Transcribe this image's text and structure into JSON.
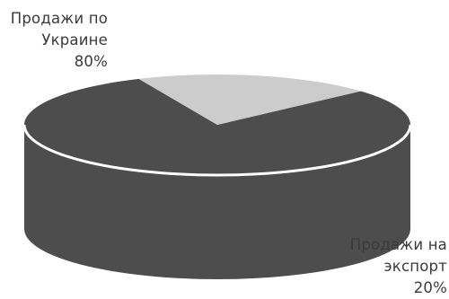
{
  "chart_data": {
    "type": "pie",
    "variant": "3d",
    "start_angle_deg": -42,
    "slices": [
      {
        "category_lines": [
          "Продажи по",
          "Украине"
        ],
        "value_label": "80%",
        "value": 80,
        "color": "#4d4d4d"
      },
      {
        "category_lines": [
          "Продажи на",
          "экспорт"
        ],
        "value_label": "20%",
        "value": 20,
        "color": "#cccccc"
      }
    ]
  }
}
